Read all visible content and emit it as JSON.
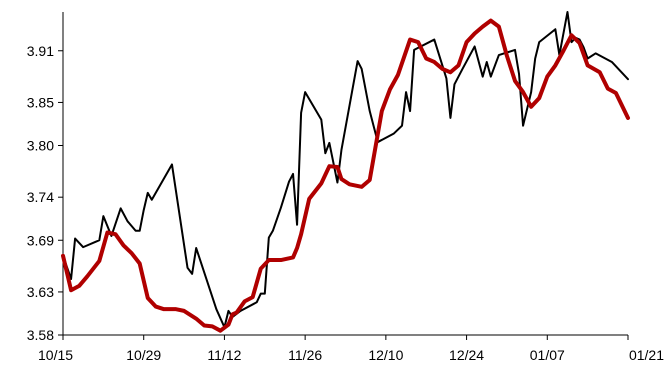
{
  "chart_data": {
    "type": "line",
    "title": "",
    "xlabel": "",
    "ylabel": "",
    "x_ticks": [
      "10/15",
      "10/29",
      "11/12",
      "11/26",
      "12/10",
      "12/24",
      "01/07",
      "01/21"
    ],
    "y_ticks": [
      "3.58",
      "3.63",
      "3.69",
      "3.74",
      "3.80",
      "3.85",
      "3.91"
    ],
    "xlim": [
      0,
      98
    ],
    "ylim": [
      3.58,
      3.955
    ],
    "grid": false,
    "legend": "none",
    "series": [
      {
        "color": "#000000",
        "line_width": "thin",
        "points": [
          [
            0,
            3.672
          ],
          [
            1.4,
            3.645
          ],
          [
            2.1,
            3.692
          ],
          [
            3.5,
            3.682
          ],
          [
            5.6,
            3.688
          ],
          [
            6.3,
            3.69
          ],
          [
            7.0,
            3.718
          ],
          [
            8.4,
            3.695
          ],
          [
            10.0,
            3.727
          ],
          [
            11.2,
            3.712
          ],
          [
            12.6,
            3.701
          ],
          [
            13.3,
            3.701
          ],
          [
            14.0,
            3.725
          ],
          [
            14.7,
            3.745
          ],
          [
            15.4,
            3.737
          ],
          [
            18.9,
            3.778
          ],
          [
            21.6,
            3.658
          ],
          [
            22.4,
            3.651
          ],
          [
            23.1,
            3.681
          ],
          [
            26.6,
            3.61
          ],
          [
            28.0,
            3.589
          ],
          [
            28.7,
            3.608
          ],
          [
            29.4,
            3.601
          ],
          [
            30.8,
            3.608
          ],
          [
            33.6,
            3.618
          ],
          [
            34.3,
            3.628
          ],
          [
            35.0,
            3.628
          ],
          [
            35.7,
            3.693
          ],
          [
            36.4,
            3.701
          ],
          [
            37.8,
            3.728
          ],
          [
            39.2,
            3.758
          ],
          [
            39.9,
            3.767
          ],
          [
            40.6,
            3.708
          ],
          [
            41.3,
            3.838
          ],
          [
            42.0,
            3.862
          ],
          [
            44.8,
            3.83
          ],
          [
            45.5,
            3.791
          ],
          [
            46.2,
            3.803
          ],
          [
            47.6,
            3.757
          ],
          [
            48.3,
            3.795
          ],
          [
            51.1,
            3.898
          ],
          [
            51.8,
            3.889
          ],
          [
            53.2,
            3.84
          ],
          [
            54.6,
            3.804
          ],
          [
            57.4,
            3.814
          ],
          [
            58.8,
            3.823
          ],
          [
            59.5,
            3.862
          ],
          [
            60.2,
            3.84
          ],
          [
            60.9,
            3.911
          ],
          [
            64.4,
            3.923
          ],
          [
            66.5,
            3.878
          ],
          [
            67.2,
            3.832
          ],
          [
            67.9,
            3.871
          ],
          [
            69.3,
            3.889
          ],
          [
            71.4,
            3.915
          ],
          [
            72.8,
            3.88
          ],
          [
            73.5,
            3.897
          ],
          [
            74.2,
            3.88
          ],
          [
            75.6,
            3.905
          ],
          [
            78.4,
            3.911
          ],
          [
            79.1,
            3.883
          ],
          [
            79.8,
            3.823
          ],
          [
            81.2,
            3.862
          ],
          [
            81.9,
            3.901
          ],
          [
            82.6,
            3.92
          ],
          [
            85.4,
            3.935
          ],
          [
            86.1,
            3.905
          ],
          [
            87.5,
            3.955
          ],
          [
            88.2,
            3.92
          ],
          [
            88.9,
            3.925
          ],
          [
            89.6,
            3.923
          ],
          [
            90.3,
            3.914
          ],
          [
            91.0,
            3.901
          ],
          [
            92.4,
            3.907
          ],
          [
            95.2,
            3.897
          ],
          [
            98.0,
            3.877
          ]
        ]
      },
      {
        "color": "#b00000",
        "line_width": "thick",
        "points": [
          [
            0,
            3.672
          ],
          [
            1.4,
            3.632
          ],
          [
            2.8,
            3.637
          ],
          [
            4.2,
            3.648
          ],
          [
            6.3,
            3.666
          ],
          [
            7.7,
            3.699
          ],
          [
            9.1,
            3.697
          ],
          [
            10.5,
            3.684
          ],
          [
            11.9,
            3.675
          ],
          [
            13.3,
            3.663
          ],
          [
            14.7,
            3.623
          ],
          [
            16.1,
            3.613
          ],
          [
            17.5,
            3.61
          ],
          [
            19.6,
            3.61
          ],
          [
            21.0,
            3.608
          ],
          [
            23.1,
            3.599
          ],
          [
            24.5,
            3.591
          ],
          [
            25.9,
            3.59
          ],
          [
            27.3,
            3.585
          ],
          [
            28.7,
            3.592
          ],
          [
            29.4,
            3.604
          ],
          [
            30.1,
            3.606
          ],
          [
            31.5,
            3.619
          ],
          [
            32.9,
            3.624
          ],
          [
            34.3,
            3.657
          ],
          [
            35.7,
            3.667
          ],
          [
            37.8,
            3.667
          ],
          [
            39.9,
            3.67
          ],
          [
            40.6,
            3.681
          ],
          [
            41.3,
            3.697
          ],
          [
            42.7,
            3.738
          ],
          [
            44.8,
            3.756
          ],
          [
            46.2,
            3.776
          ],
          [
            47.6,
            3.775
          ],
          [
            48.3,
            3.761
          ],
          [
            49.7,
            3.755
          ],
          [
            51.8,
            3.752
          ],
          [
            53.2,
            3.76
          ],
          [
            55.3,
            3.84
          ],
          [
            56.7,
            3.865
          ],
          [
            58.1,
            3.882
          ],
          [
            60.2,
            3.923
          ],
          [
            61.6,
            3.92
          ],
          [
            63.0,
            3.901
          ],
          [
            64.4,
            3.897
          ],
          [
            65.8,
            3.889
          ],
          [
            67.2,
            3.885
          ],
          [
            68.6,
            3.893
          ],
          [
            70.0,
            3.92
          ],
          [
            71.4,
            3.93
          ],
          [
            72.8,
            3.938
          ],
          [
            74.2,
            3.945
          ],
          [
            75.6,
            3.938
          ],
          [
            77.0,
            3.904
          ],
          [
            78.4,
            3.875
          ],
          [
            79.8,
            3.862
          ],
          [
            81.2,
            3.845
          ],
          [
            82.6,
            3.855
          ],
          [
            84.0,
            3.88
          ],
          [
            85.4,
            3.893
          ],
          [
            86.8,
            3.91
          ],
          [
            88.2,
            3.928
          ],
          [
            89.6,
            3.919
          ],
          [
            91.0,
            3.893
          ],
          [
            93.1,
            3.885
          ],
          [
            94.5,
            3.866
          ],
          [
            95.9,
            3.861
          ],
          [
            98.0,
            3.832
          ]
        ]
      }
    ]
  }
}
